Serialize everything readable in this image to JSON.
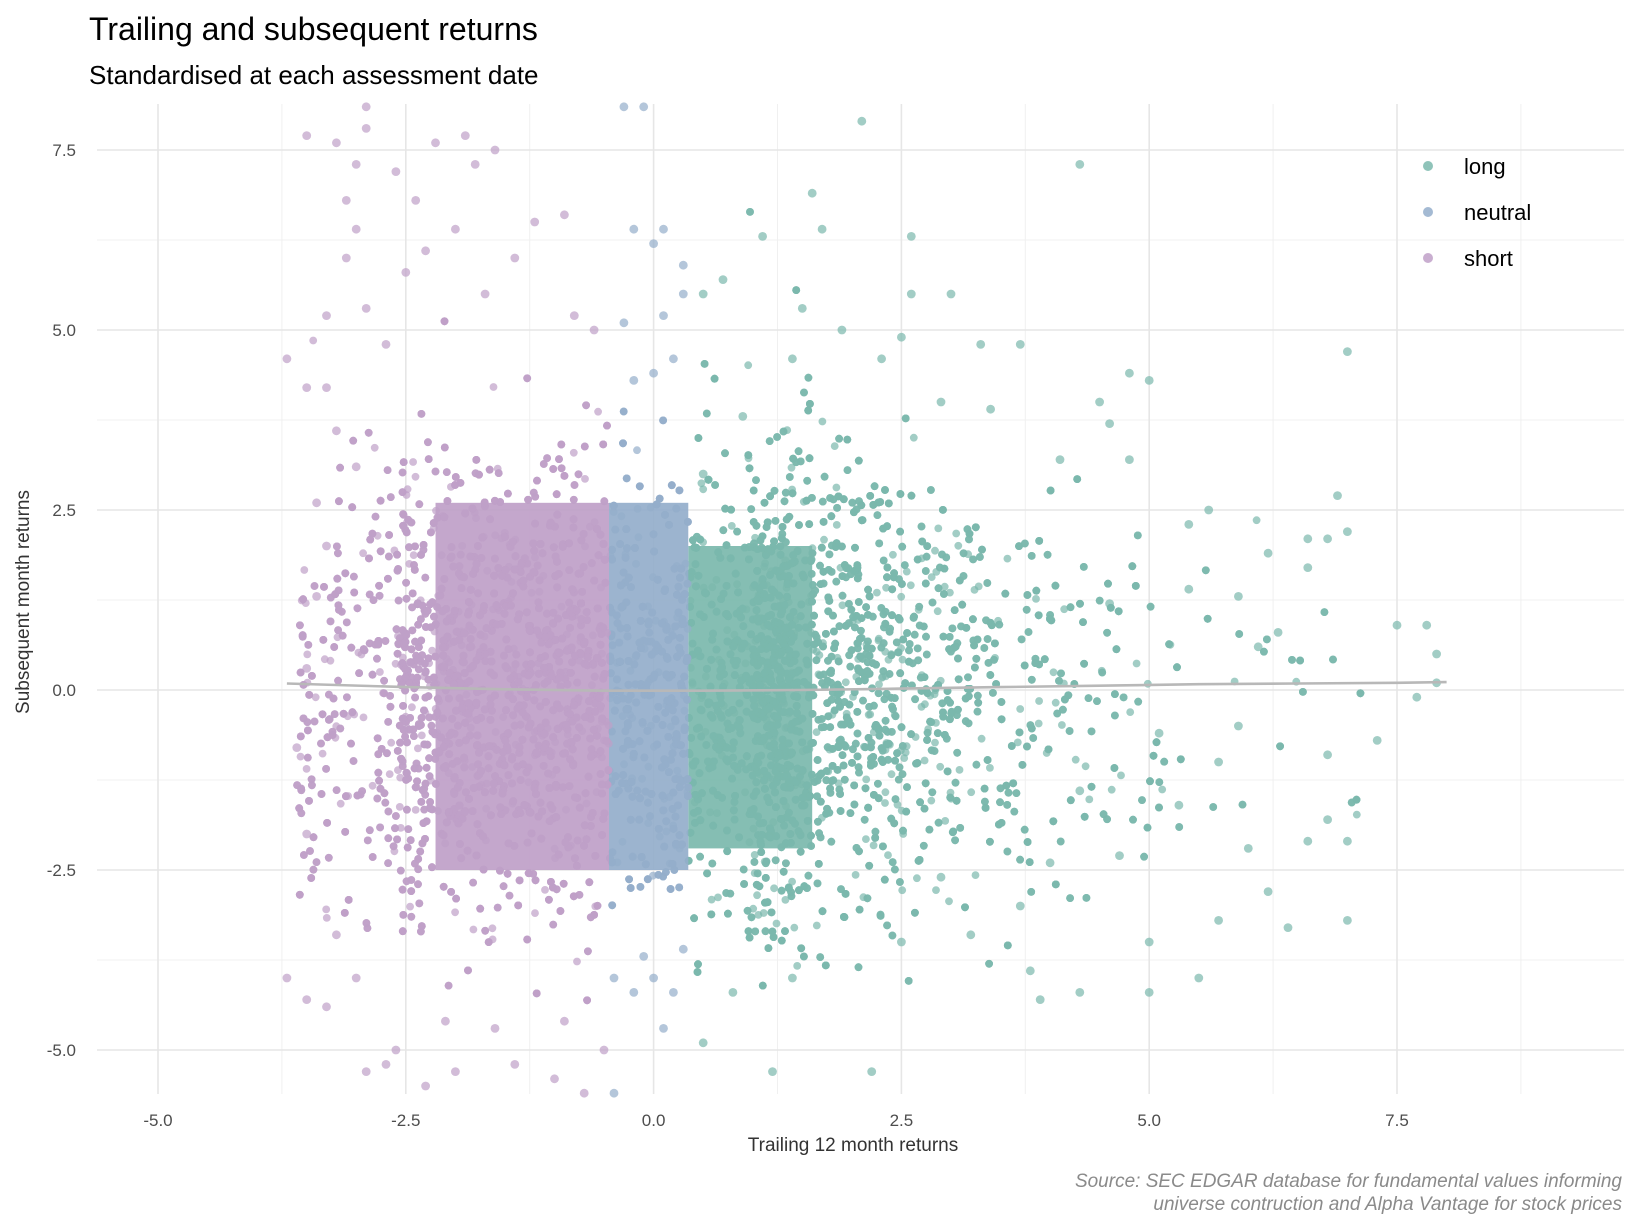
{
  "title": "Trailing and subsequent returns",
  "subtitle": "Standardised at each assessment date",
  "caption_line1": "Source: SEC EDGAR database for fundamental values informing",
  "caption_line2": "universe contruction and Alpha Vantage for stock prices",
  "chart_data": {
    "type": "scatter",
    "title": "Trailing and subsequent returns",
    "subtitle": "Standardised at each assessment date",
    "xlabel": "Trailing 12 month returns",
    "ylabel": "Subsequent month returns",
    "xlim": [
      -5.5,
      8.0
    ],
    "ylim": [
      -5.6,
      8.1
    ],
    "x_ticks": [
      -5.0,
      -2.5,
      0.0,
      2.5,
      5.0,
      7.5
    ],
    "x_tick_labels": [
      "-5.0",
      "-2.5",
      "0.0",
      "2.5",
      "5.0",
      "7.5"
    ],
    "y_ticks": [
      -5.0,
      -2.5,
      0.0,
      2.5,
      5.0,
      7.5
    ],
    "y_tick_labels": [
      "-5.0",
      "-2.5",
      "0.0",
      "2.5",
      "5.0",
      "7.5"
    ],
    "grid": true,
    "legend_position": "top-right",
    "series": [
      {
        "name": "long",
        "color": "#7bb8ad",
        "x_range": [
          0.35,
          7.9
        ],
        "y_range": [
          -5.3,
          8.0
        ],
        "points": [
          [
            0.5,
            3.0
          ],
          [
            0.9,
            3.8
          ],
          [
            1.4,
            4.6
          ],
          [
            1.6,
            6.9
          ],
          [
            2.1,
            7.9
          ],
          [
            4.3,
            7.3
          ],
          [
            2.3,
            4.6
          ],
          [
            3.3,
            4.8
          ],
          [
            4.8,
            4.4
          ],
          [
            5.0,
            4.3
          ],
          [
            7.0,
            4.7
          ],
          [
            3.7,
            4.8
          ],
          [
            4.5,
            4.0
          ],
          [
            4.6,
            3.7
          ],
          [
            5.4,
            2.3
          ],
          [
            6.6,
            2.1
          ],
          [
            6.8,
            2.1
          ],
          [
            7.0,
            2.2
          ],
          [
            6.9,
            2.7
          ],
          [
            7.5,
            0.9
          ],
          [
            7.8,
            0.9
          ],
          [
            7.9,
            0.5
          ],
          [
            7.9,
            0.1
          ],
          [
            7.7,
            -0.1
          ],
          [
            7.3,
            -0.7
          ],
          [
            7.0,
            -2.1
          ],
          [
            7.0,
            -3.2
          ],
          [
            6.8,
            -1.8
          ],
          [
            6.6,
            -2.1
          ],
          [
            6.4,
            -3.3
          ],
          [
            6.2,
            -2.8
          ],
          [
            6.0,
            -2.2
          ],
          [
            5.7,
            -3.2
          ],
          [
            5.5,
            -4.0
          ],
          [
            5.0,
            -3.5
          ],
          [
            5.0,
            -4.2
          ],
          [
            4.3,
            -4.2
          ],
          [
            3.9,
            -4.3
          ],
          [
            3.8,
            -3.9
          ],
          [
            3.7,
            -3.0
          ],
          [
            4.0,
            -2.4
          ],
          [
            4.7,
            -2.3
          ],
          [
            5.3,
            -1.6
          ],
          [
            5.7,
            -1.0
          ],
          [
            5.9,
            -0.5
          ],
          [
            6.3,
            0.8
          ],
          [
            6.1,
            0.6
          ],
          [
            5.4,
            1.4
          ],
          [
            4.6,
            1.2
          ],
          [
            4.3,
            -1.4
          ],
          [
            5.1,
            -0.6
          ],
          [
            6.8,
            -0.9
          ],
          [
            2.2,
            -5.3
          ],
          [
            1.2,
            -5.3
          ],
          [
            0.5,
            -4.9
          ],
          [
            0.8,
            -4.2
          ],
          [
            1.4,
            -4.0
          ],
          [
            2.5,
            -3.5
          ],
          [
            3.2,
            -3.4
          ],
          [
            2.9,
            -2.6
          ],
          [
            0.5,
            5.5
          ],
          [
            0.7,
            5.7
          ],
          [
            1.1,
            6.3
          ],
          [
            1.7,
            6.4
          ],
          [
            2.6,
            6.3
          ],
          [
            2.6,
            5.5
          ],
          [
            3.0,
            5.5
          ],
          [
            1.5,
            5.3
          ],
          [
            1.9,
            5.0
          ],
          [
            2.5,
            4.9
          ],
          [
            2.9,
            4.0
          ],
          [
            3.4,
            3.9
          ],
          [
            4.1,
            3.2
          ],
          [
            4.8,
            3.2
          ],
          [
            5.6,
            2.5
          ],
          [
            6.2,
            1.9
          ],
          [
            5.9,
            1.3
          ],
          [
            6.6,
            1.7
          ]
        ]
      },
      {
        "name": "neutral",
        "color": "#94aecb",
        "x_range": [
          -0.45,
          0.35
        ],
        "y_range": [
          -5.6,
          8.1
        ],
        "points": [
          [
            -0.3,
            8.1
          ],
          [
            -0.1,
            8.1
          ],
          [
            -0.2,
            6.4
          ],
          [
            0.0,
            6.2
          ],
          [
            0.1,
            6.4
          ],
          [
            0.3,
            5.9
          ],
          [
            -0.3,
            5.1
          ],
          [
            0.1,
            5.2
          ],
          [
            0.3,
            5.5
          ],
          [
            -0.2,
            4.3
          ],
          [
            0.0,
            4.4
          ],
          [
            0.2,
            4.6
          ],
          [
            -0.4,
            -4.0
          ],
          [
            -0.2,
            -4.2
          ],
          [
            0.1,
            -4.7
          ],
          [
            0.2,
            -4.2
          ],
          [
            0.3,
            -3.6
          ],
          [
            -0.4,
            -5.6
          ],
          [
            0.0,
            -4.0
          ],
          [
            -0.1,
            -3.7
          ]
        ]
      },
      {
        "name": "short",
        "color": "#bfa0c8",
        "x_range": [
          -3.7,
          -0.45
        ],
        "y_range": [
          -5.6,
          8.1
        ],
        "points": [
          [
            -2.9,
            8.1
          ],
          [
            -2.9,
            7.8
          ],
          [
            -3.2,
            7.6
          ],
          [
            -3.5,
            7.7
          ],
          [
            -3.0,
            7.3
          ],
          [
            -2.6,
            7.2
          ],
          [
            -2.2,
            7.6
          ],
          [
            -1.9,
            7.7
          ],
          [
            -1.6,
            7.5
          ],
          [
            -1.8,
            7.3
          ],
          [
            -3.1,
            6.8
          ],
          [
            -2.4,
            6.8
          ],
          [
            -3.0,
            6.4
          ],
          [
            -2.0,
            6.4
          ],
          [
            -1.2,
            6.5
          ],
          [
            -0.9,
            6.6
          ],
          [
            -1.4,
            6.0
          ],
          [
            -3.1,
            6.0
          ],
          [
            -3.7,
            4.6
          ],
          [
            -3.3,
            5.2
          ],
          [
            -3.3,
            4.2
          ],
          [
            -3.5,
            4.2
          ],
          [
            -2.9,
            5.3
          ],
          [
            -2.7,
            4.8
          ],
          [
            -2.3,
            6.1
          ],
          [
            -2.5,
            5.8
          ],
          [
            -1.7,
            5.5
          ],
          [
            -0.8,
            5.2
          ],
          [
            -0.6,
            5.0
          ],
          [
            -3.2,
            3.6
          ],
          [
            -3.0,
            3.1
          ],
          [
            -3.4,
            2.6
          ],
          [
            -3.7,
            -4.0
          ],
          [
            -3.5,
            -4.3
          ],
          [
            -3.3,
            -4.4
          ],
          [
            -2.9,
            -5.3
          ],
          [
            -2.7,
            -5.2
          ],
          [
            -2.6,
            -5.0
          ],
          [
            -2.3,
            -5.5
          ],
          [
            -2.0,
            -5.3
          ],
          [
            -1.4,
            -5.2
          ],
          [
            -1.0,
            -5.4
          ],
          [
            -0.7,
            -5.6
          ],
          [
            -0.5,
            -5.0
          ],
          [
            -1.6,
            -4.7
          ],
          [
            -2.1,
            -4.6
          ],
          [
            -0.9,
            -4.6
          ],
          [
            -3.0,
            -4.0
          ],
          [
            -3.2,
            -3.4
          ],
          [
            -3.5,
            -2.0
          ],
          [
            -3.6,
            -0.8
          ],
          [
            -3.5,
            0.3
          ],
          [
            -3.4,
            1.3
          ],
          [
            -3.3,
            2.0
          ]
        ]
      }
    ],
    "trend_line": {
      "color": "#b8b8b8",
      "x": [
        -3.7,
        -2.5,
        -1.5,
        -0.5,
        0.5,
        1.5,
        2.5,
        3.5,
        4.5,
        5.5,
        6.5,
        7.5,
        8.0
      ],
      "y": [
        0.09,
        0.04,
        0.01,
        -0.01,
        -0.01,
        0.0,
        0.02,
        0.04,
        0.06,
        0.08,
        0.09,
        0.1,
        0.11
      ]
    }
  }
}
